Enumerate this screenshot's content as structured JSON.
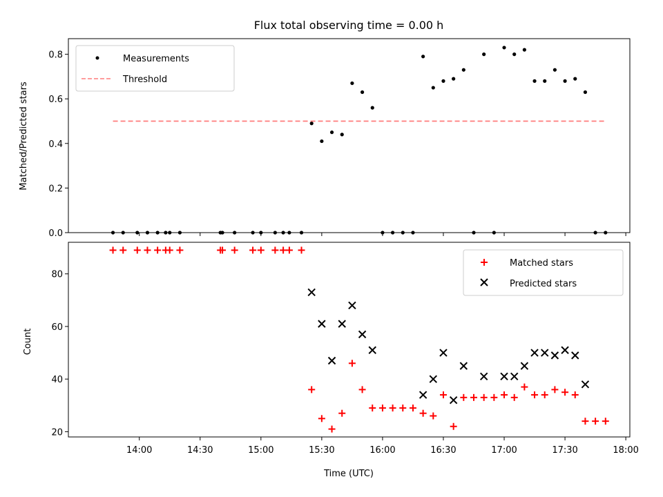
{
  "chart_data": [
    {
      "type": "scatter",
      "title": "Flux total observing time = 0.00 h",
      "ylabel": "Matched/Predicted stars",
      "xlabel": "",
      "xlim": [
        "13:25",
        "18:02"
      ],
      "ylim": [
        0,
        0.87
      ],
      "y_ticks": [
        0.0,
        0.2,
        0.4,
        0.6,
        0.8
      ],
      "y_tick_labels": [
        "0.0",
        "0.2",
        "0.4",
        "0.6",
        "0.8"
      ],
      "x_ticks": [
        "14:00",
        "14:30",
        "15:00",
        "15:30",
        "16:00",
        "16:30",
        "17:00",
        "17:30",
        "18:00"
      ],
      "x_tick_labels_visible": false,
      "grid": false,
      "legend": "top-left",
      "series": [
        {
          "name": "Measurements",
          "kind": "scatter",
          "marker": "dot",
          "color": "#000000",
          "points": [
            [
              "13:47",
              0
            ],
            [
              "13:52",
              0
            ],
            [
              "13:59",
              0
            ],
            [
              "14:04",
              0
            ],
            [
              "14:09",
              0
            ],
            [
              "14:13",
              0
            ],
            [
              "14:15",
              0
            ],
            [
              "14:20",
              0
            ],
            [
              "14:40",
              0
            ],
            [
              "14:41",
              0
            ],
            [
              "14:47",
              0
            ],
            [
              "14:56",
              0
            ],
            [
              "15:00",
              0
            ],
            [
              "15:07",
              0
            ],
            [
              "15:11",
              0
            ],
            [
              "15:14",
              0
            ],
            [
              "15:20",
              0
            ],
            [
              "15:25",
              0.49
            ],
            [
              "15:30",
              0.41
            ],
            [
              "15:35",
              0.45
            ],
            [
              "15:40",
              0.44
            ],
            [
              "15:45",
              0.67
            ],
            [
              "15:50",
              0.63
            ],
            [
              "15:55",
              0.56
            ],
            [
              "16:00",
              0
            ],
            [
              "16:05",
              0
            ],
            [
              "16:10",
              0
            ],
            [
              "16:15",
              0
            ],
            [
              "16:20",
              0.79
            ],
            [
              "16:25",
              0.65
            ],
            [
              "16:30",
              0.68
            ],
            [
              "16:35",
              0.69
            ],
            [
              "16:40",
              0.73
            ],
            [
              "16:45",
              0
            ],
            [
              "16:50",
              0.8
            ],
            [
              "16:55",
              0
            ],
            [
              "17:00",
              0.83
            ],
            [
              "17:05",
              0.8
            ],
            [
              "17:10",
              0.82
            ],
            [
              "17:15",
              0.68
            ],
            [
              "17:20",
              0.68
            ],
            [
              "17:25",
              0.73
            ],
            [
              "17:30",
              0.68
            ],
            [
              "17:35",
              0.69
            ],
            [
              "17:40",
              0.63
            ],
            [
              "17:45",
              0
            ],
            [
              "17:50",
              0
            ]
          ]
        },
        {
          "name": "Threshold",
          "kind": "line",
          "style": "dashed",
          "color": "#ff7b7b",
          "points": [
            [
              "13:47",
              0.5
            ],
            [
              "17:50",
              0.5
            ]
          ]
        }
      ]
    },
    {
      "type": "scatter",
      "title": "",
      "ylabel": "Count",
      "xlabel": "Time (UTC)",
      "xlim": [
        "13:25",
        "18:02"
      ],
      "ylim": [
        18,
        92
      ],
      "y_ticks": [
        20,
        40,
        60,
        80
      ],
      "y_tick_labels": [
        "20",
        "40",
        "60",
        "80"
      ],
      "x_ticks": [
        "14:00",
        "14:30",
        "15:00",
        "15:30",
        "16:00",
        "16:30",
        "17:00",
        "17:30",
        "18:00"
      ],
      "x_tick_labels": [
        "14:00",
        "14:30",
        "15:00",
        "15:30",
        "16:00",
        "16:30",
        "17:00",
        "17:30",
        "18:00"
      ],
      "grid": false,
      "legend": "top-right",
      "series": [
        {
          "name": "Matched stars",
          "kind": "scatter",
          "marker": "plus",
          "color": "#ff0000",
          "points": [
            [
              "13:47",
              89
            ],
            [
              "13:52",
              89
            ],
            [
              "13:59",
              89
            ],
            [
              "14:04",
              89
            ],
            [
              "14:09",
              89
            ],
            [
              "14:13",
              89
            ],
            [
              "14:15",
              89
            ],
            [
              "14:20",
              89
            ],
            [
              "14:40",
              89
            ],
            [
              "14:41",
              89
            ],
            [
              "14:47",
              89
            ],
            [
              "14:56",
              89
            ],
            [
              "15:00",
              89
            ],
            [
              "15:07",
              89
            ],
            [
              "15:11",
              89
            ],
            [
              "15:14",
              89
            ],
            [
              "15:20",
              89
            ],
            [
              "15:25",
              36
            ],
            [
              "15:30",
              25
            ],
            [
              "15:35",
              21
            ],
            [
              "15:40",
              27
            ],
            [
              "15:45",
              46
            ],
            [
              "15:50",
              36
            ],
            [
              "15:55",
              29
            ],
            [
              "16:00",
              29
            ],
            [
              "16:05",
              29
            ],
            [
              "16:10",
              29
            ],
            [
              "16:15",
              29
            ],
            [
              "16:20",
              27
            ],
            [
              "16:25",
              26
            ],
            [
              "16:30",
              34
            ],
            [
              "16:35",
              22
            ],
            [
              "16:40",
              33
            ],
            [
              "16:45",
              33
            ],
            [
              "16:50",
              33
            ],
            [
              "16:55",
              33
            ],
            [
              "17:00",
              34
            ],
            [
              "17:05",
              33
            ],
            [
              "17:10",
              37
            ],
            [
              "17:15",
              34
            ],
            [
              "17:20",
              34
            ],
            [
              "17:25",
              36
            ],
            [
              "17:30",
              35
            ],
            [
              "17:35",
              34
            ],
            [
              "17:40",
              24
            ],
            [
              "17:45",
              24
            ],
            [
              "17:50",
              24
            ]
          ]
        },
        {
          "name": "Predicted stars",
          "kind": "scatter",
          "marker": "x",
          "color": "#000000",
          "points": [
            [
              "15:25",
              73
            ],
            [
              "15:30",
              61
            ],
            [
              "15:35",
              47
            ],
            [
              "15:40",
              61
            ],
            [
              "15:45",
              68
            ],
            [
              "15:50",
              57
            ],
            [
              "15:55",
              51
            ],
            [
              "16:20",
              34
            ],
            [
              "16:25",
              40
            ],
            [
              "16:30",
              50
            ],
            [
              "16:35",
              32
            ],
            [
              "16:40",
              45
            ],
            [
              "16:50",
              41
            ],
            [
              "17:00",
              41
            ],
            [
              "17:05",
              41
            ],
            [
              "17:10",
              45
            ],
            [
              "17:15",
              50
            ],
            [
              "17:20",
              50
            ],
            [
              "17:25",
              49
            ],
            [
              "17:30",
              51
            ],
            [
              "17:35",
              49
            ],
            [
              "17:40",
              38
            ]
          ]
        }
      ]
    }
  ]
}
